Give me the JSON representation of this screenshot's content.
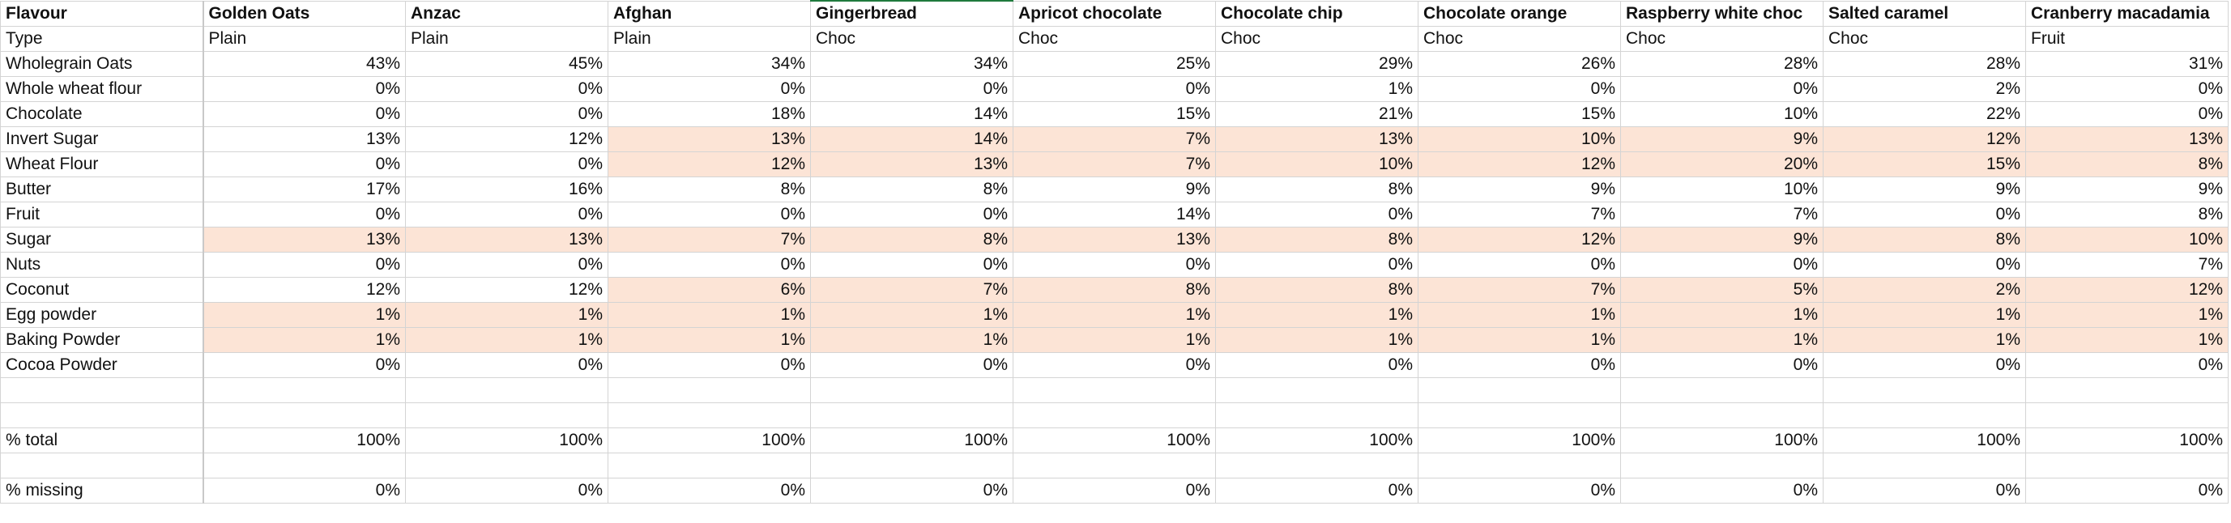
{
  "highlight_color": "#fce4d6",
  "columns": [
    "Flavour",
    "Golden Oats",
    "Anzac",
    "Afghan",
    "Gingerbread",
    "Apricot chocolate",
    "Chocolate chip",
    "Chocolate orange",
    "Raspberry white choc",
    "Salted caramel",
    "Cranberry macadamia"
  ],
  "rows": [
    {
      "label": "Type",
      "kind": "text",
      "cells": [
        "Plain",
        "Plain",
        "Plain",
        "Choc",
        "Choc",
        "Choc",
        "Choc",
        "Choc",
        "Choc",
        "Fruit"
      ],
      "hl": []
    },
    {
      "label": "Wholegrain Oats",
      "kind": "num",
      "cells": [
        "43%",
        "45%",
        "34%",
        "34%",
        "25%",
        "29%",
        "26%",
        "28%",
        "28%",
        "31%"
      ],
      "hl": []
    },
    {
      "label": "Whole wheat flour",
      "kind": "num",
      "cells": [
        "0%",
        "0%",
        "0%",
        "0%",
        "0%",
        "1%",
        "0%",
        "0%",
        "2%",
        "0%"
      ],
      "hl": []
    },
    {
      "label": "Chocolate",
      "kind": "num",
      "cells": [
        "0%",
        "0%",
        "18%",
        "14%",
        "15%",
        "21%",
        "15%",
        "10%",
        "22%",
        "0%"
      ],
      "hl": []
    },
    {
      "label": "Invert Sugar",
      "kind": "num",
      "cells": [
        "13%",
        "12%",
        "13%",
        "14%",
        "7%",
        "13%",
        "10%",
        "9%",
        "12%",
        "13%"
      ],
      "hl": [
        2,
        3,
        4,
        5,
        6,
        7,
        8,
        9
      ]
    },
    {
      "label": "Wheat Flour",
      "kind": "num",
      "cells": [
        "0%",
        "0%",
        "12%",
        "13%",
        "7%",
        "10%",
        "12%",
        "20%",
        "15%",
        "8%"
      ],
      "hl": [
        2,
        3,
        4,
        5,
        6,
        7,
        8,
        9
      ]
    },
    {
      "label": "Butter",
      "kind": "num",
      "cells": [
        "17%",
        "16%",
        "8%",
        "8%",
        "9%",
        "8%",
        "9%",
        "10%",
        "9%",
        "9%"
      ],
      "hl": []
    },
    {
      "label": "Fruit",
      "kind": "num",
      "cells": [
        "0%",
        "0%",
        "0%",
        "0%",
        "14%",
        "0%",
        "7%",
        "7%",
        "0%",
        "8%"
      ],
      "hl": []
    },
    {
      "label": "Sugar",
      "kind": "num",
      "cells": [
        "13%",
        "13%",
        "7%",
        "8%",
        "13%",
        "8%",
        "12%",
        "9%",
        "8%",
        "10%"
      ],
      "hl": [
        0,
        1,
        2,
        3,
        4,
        5,
        6,
        7,
        8,
        9
      ]
    },
    {
      "label": "Nuts",
      "kind": "num",
      "cells": [
        "0%",
        "0%",
        "0%",
        "0%",
        "0%",
        "0%",
        "0%",
        "0%",
        "0%",
        "7%"
      ],
      "hl": []
    },
    {
      "label": "Coconut",
      "kind": "num",
      "cells": [
        "12%",
        "12%",
        "6%",
        "7%",
        "8%",
        "8%",
        "7%",
        "5%",
        "2%",
        "12%"
      ],
      "hl": [
        2,
        3,
        4,
        5,
        6,
        7,
        8,
        9
      ]
    },
    {
      "label": "Egg powder",
      "kind": "num",
      "cells": [
        "1%",
        "1%",
        "1%",
        "1%",
        "1%",
        "1%",
        "1%",
        "1%",
        "1%",
        "1%"
      ],
      "hl": [
        0,
        1,
        2,
        3,
        4,
        5,
        6,
        7,
        8,
        9
      ]
    },
    {
      "label": "Baking Powder",
      "kind": "num",
      "cells": [
        "1%",
        "1%",
        "1%",
        "1%",
        "1%",
        "1%",
        "1%",
        "1%",
        "1%",
        "1%"
      ],
      "hl": [
        0,
        1,
        2,
        3,
        4,
        5,
        6,
        7,
        8,
        9
      ]
    },
    {
      "label": "Cocoa Powder",
      "kind": "num",
      "cells": [
        "0%",
        "0%",
        "0%",
        "0%",
        "0%",
        "0%",
        "0%",
        "0%",
        "0%",
        "0%"
      ],
      "hl": []
    },
    {
      "label": "",
      "kind": "num",
      "cells": [
        "",
        "",
        "",
        "",
        "",
        "",
        "",
        "",
        "",
        ""
      ],
      "hl": []
    },
    {
      "label": "",
      "kind": "num",
      "cells": [
        "",
        "",
        "",
        "",
        "",
        "",
        "",
        "",
        "",
        ""
      ],
      "hl": []
    },
    {
      "label": "% total",
      "kind": "num",
      "cells": [
        "100%",
        "100%",
        "100%",
        "100%",
        "100%",
        "100%",
        "100%",
        "100%",
        "100%",
        "100%"
      ],
      "hl": []
    },
    {
      "label": "",
      "kind": "num",
      "cells": [
        "",
        "",
        "",
        "",
        "",
        "",
        "",
        "",
        "",
        ""
      ],
      "hl": []
    },
    {
      "label": "% missing",
      "kind": "num",
      "cells": [
        "0%",
        "0%",
        "0%",
        "0%",
        "0%",
        "0%",
        "0%",
        "0%",
        "0%",
        "0%"
      ],
      "hl": []
    }
  ]
}
